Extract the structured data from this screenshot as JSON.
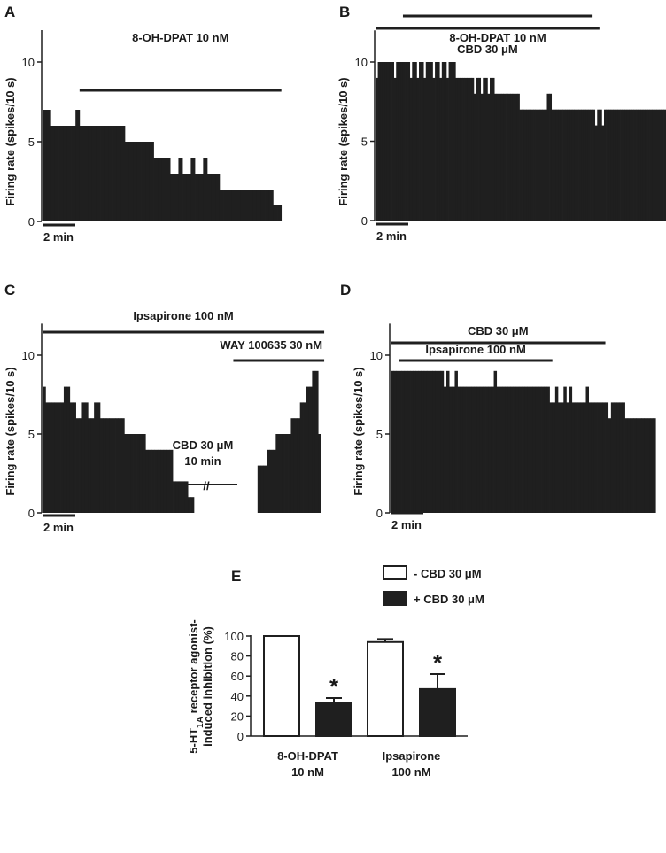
{
  "chart_data": [
    {
      "id": "A",
      "type": "area",
      "panel_label": "A",
      "ylabel": "Firing rate (spikes/10 s)",
      "yticks": [
        "0",
        "5",
        "10"
      ],
      "ylim": [
        0,
        12
      ],
      "scale_bar": "2 min",
      "bin_s": 10,
      "values": [
        7,
        7,
        6,
        6,
        6,
        6,
        6,
        6,
        7,
        6,
        6,
        6,
        6,
        6,
        6,
        6,
        6,
        6,
        6,
        6,
        5,
        5,
        5,
        5,
        5,
        5,
        5,
        4,
        4,
        4,
        4,
        3,
        3,
        4,
        3,
        3,
        4,
        3,
        3,
        4,
        3,
        3,
        3,
        2,
        2,
        2,
        2,
        2,
        2,
        2,
        2,
        2,
        2,
        2,
        2,
        2,
        1,
        1
      ],
      "drugs": [
        {
          "label": "8-OH-DPAT 10 nM",
          "start_bin": 9,
          "end_bin": 58
        }
      ]
    },
    {
      "id": "B",
      "type": "area",
      "panel_label": "B",
      "ylabel": "Firing rate (spikes/10 s)",
      "yticks": [
        "0",
        "5",
        "10"
      ],
      "ylim": [
        0,
        12
      ],
      "scale_bar": "2 min",
      "bin_s": 10,
      "values": [
        9,
        10,
        10,
        10,
        10,
        10,
        10,
        10,
        9,
        10,
        10,
        10,
        10,
        10,
        10,
        9,
        10,
        10,
        9,
        10,
        10,
        9,
        10,
        10,
        10,
        9,
        10,
        10,
        9,
        10,
        10,
        9,
        10,
        10,
        10,
        9,
        9,
        9,
        9,
        9,
        9,
        9,
        9,
        8,
        9,
        9,
        8,
        9,
        9,
        8,
        9,
        9,
        8,
        8,
        8,
        8,
        8,
        8,
        8,
        8,
        8,
        8,
        8,
        7,
        7,
        7,
        7,
        7,
        7,
        7,
        7,
        7,
        7,
        7,
        7,
        8,
        8,
        7,
        7,
        7,
        7,
        7,
        7,
        7,
        7,
        7,
        7,
        7,
        7,
        7,
        7,
        7,
        7,
        7,
        7,
        7,
        6,
        7,
        7,
        6,
        7,
        7,
        7,
        7,
        7,
        7,
        7,
        7,
        7,
        7,
        7,
        7,
        7,
        7,
        7,
        7,
        7,
        7,
        7,
        7,
        7,
        7,
        7,
        7,
        7,
        7,
        7
      ],
      "drugs": [
        {
          "label": "CBD 30 μM",
          "start_bin": 0,
          "end_bin": 98
        },
        {
          "label": "8-OH-DPAT 10 nM",
          "start_bin": 12,
          "end_bin": 95
        }
      ]
    },
    {
      "id": "C",
      "type": "area",
      "panel_label": "C",
      "ylabel": "Firing rate (spikes/10 s)",
      "yticks": [
        "0",
        "5",
        "10"
      ],
      "ylim": [
        0,
        12
      ],
      "scale_bar": "2 min",
      "bin_s": 10,
      "values": [
        8,
        7,
        7,
        7,
        7,
        7,
        7,
        8,
        8,
        7,
        7,
        6,
        6,
        7,
        7,
        6,
        6,
        7,
        7,
        6,
        6,
        6,
        6,
        6,
        6,
        6,
        6,
        5,
        5,
        5,
        5,
        5,
        5,
        5,
        4,
        4,
        4,
        4,
        4,
        4,
        4,
        4,
        4,
        2,
        2,
        2,
        2,
        2,
        1,
        1,
        0,
        0,
        0,
        0,
        0,
        0,
        0,
        0,
        0,
        0,
        0,
        0,
        0,
        0,
        0,
        0,
        0,
        0,
        0,
        0,
        0,
        3,
        3,
        3,
        4,
        4,
        4,
        5,
        5,
        5,
        5,
        5,
        6,
        6,
        6,
        7,
        7,
        8,
        8,
        9,
        9,
        5
      ],
      "drugs": [
        {
          "label": "Ipsapirone 100 nM",
          "start_bin": 0,
          "end_bin": 93
        },
        {
          "label": "WAY 100635 30 nM",
          "start_bin": 63,
          "end_bin": 93
        }
      ],
      "gap": {
        "label_line1": "CBD 30 μM",
        "label_line2": "10 min",
        "break_mark": "//",
        "start_bin": 50,
        "end_bin": 71
      }
    },
    {
      "id": "D",
      "type": "area",
      "panel_label": "D",
      "ylabel": "Firing rate (spikes/10 s)",
      "yticks": [
        "0",
        "5",
        "10"
      ],
      "ylim": [
        0,
        12
      ],
      "scale_bar": "2 min",
      "bin_s": 10,
      "values": [
        9,
        9,
        9,
        9,
        9,
        9,
        9,
        9,
        9,
        9,
        9,
        9,
        9,
        9,
        9,
        9,
        9,
        9,
        9,
        8,
        9,
        8,
        8,
        9,
        8,
        8,
        8,
        8,
        8,
        8,
        8,
        8,
        8,
        8,
        8,
        8,
        8,
        9,
        8,
        8,
        8,
        8,
        8,
        8,
        8,
        8,
        8,
        8,
        8,
        8,
        8,
        8,
        8,
        8,
        8,
        8,
        8,
        7,
        7,
        8,
        7,
        7,
        8,
        7,
        8,
        7,
        7,
        7,
        7,
        7,
        8,
        7,
        7,
        7,
        7,
        7,
        7,
        7,
        6,
        7,
        7,
        7,
        7,
        7,
        6,
        6,
        6,
        6,
        6,
        6,
        6,
        6,
        6,
        6,
        6
      ],
      "drugs": [
        {
          "label": "CBD 30 μM",
          "start_bin": 0,
          "end_bin": 77
        },
        {
          "label": "Ipsapirone 100 nM",
          "start_bin": 3,
          "end_bin": 58
        }
      ]
    },
    {
      "id": "E",
      "type": "bar",
      "panel_label": "E",
      "ylabel_main": "5-HT",
      "ylabel_sub": "1A",
      "ylabel_rest": " receptor agonist-",
      "ylabel_line2": "induced inhibition (%)",
      "ylim": [
        0,
        100
      ],
      "yticks": [
        "0",
        "20",
        "40",
        "60",
        "80",
        "100"
      ],
      "categories": [
        [
          "8-OH-DPAT",
          "10 nM"
        ],
        [
          "Ipsapirone",
          "100 nM"
        ]
      ],
      "legend_position": "top-right",
      "series": [
        {
          "name": "- CBD 30 μM",
          "fill": "#ffffff",
          "values": [
            100,
            94
          ],
          "errors": [
            0,
            3
          ],
          "significant": [
            false,
            false
          ]
        },
        {
          "name": "+ CBD 30 μM",
          "fill": "#1f1f1f",
          "values": [
            33,
            47
          ],
          "errors": [
            5,
            15
          ],
          "significant": [
            true,
            true
          ]
        }
      ],
      "significance_mark": "*"
    }
  ]
}
